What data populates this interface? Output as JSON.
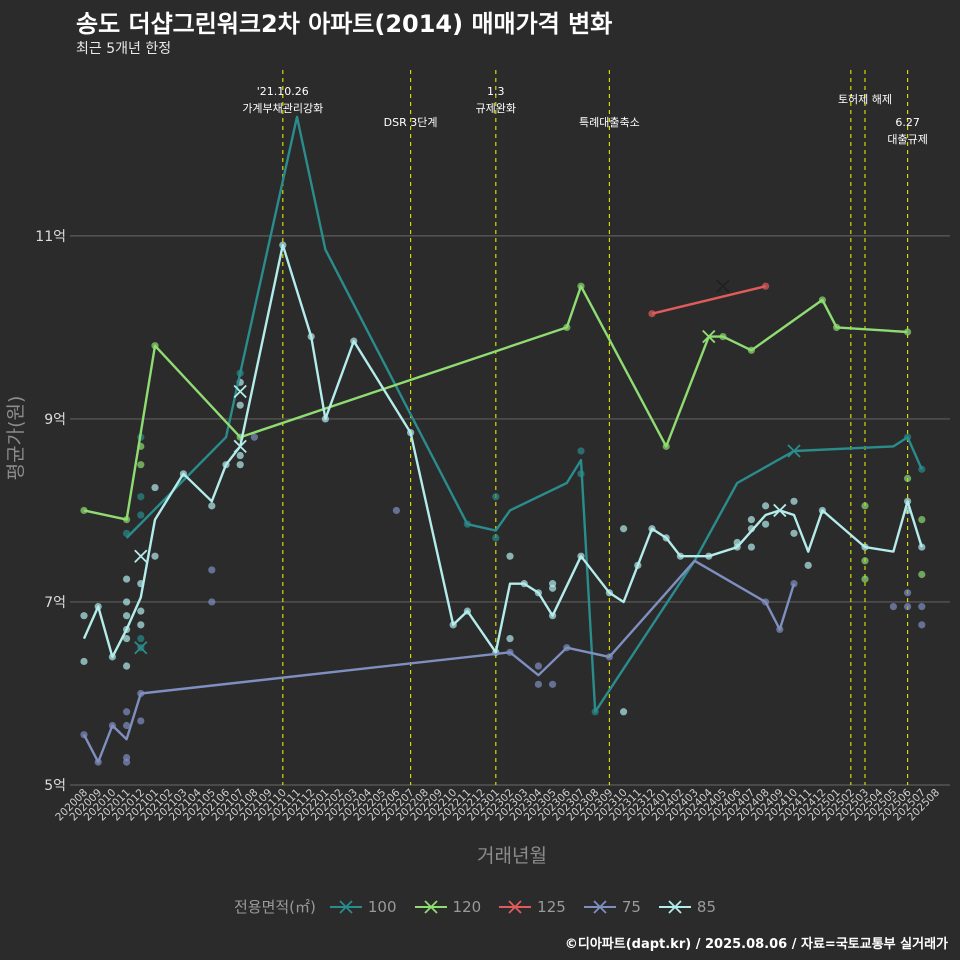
{
  "header": {
    "title": "송도 더샵그린워크2차 아파트(2014) 매매가격 변화",
    "subtitle": "최근 5개년 한정"
  },
  "footer": "©디아파트(dapt.kr) / 2025.08.06 / 자료=국토교통부 실거래가",
  "legend_title": "전용면적(㎡)",
  "chart_data": {
    "type": "line",
    "xlabel": "거래년월",
    "ylabel": "평균가(원)",
    "ylim": [
      5,
      12.9
    ],
    "yticks": [
      {
        "value": 5,
        "label": "5억"
      },
      {
        "value": 7,
        "label": "7억"
      },
      {
        "value": 9,
        "label": "9억"
      },
      {
        "value": 11,
        "label": "11억"
      }
    ],
    "categories": [
      "202008",
      "202009",
      "202010",
      "202011",
      "202012",
      "202101",
      "202102",
      "202103",
      "202104",
      "202105",
      "202106",
      "202107",
      "202108",
      "202109",
      "202110",
      "202111",
      "202112",
      "202201",
      "202202",
      "202203",
      "202204",
      "202205",
      "202206",
      "202207",
      "202208",
      "202209",
      "202210",
      "202211",
      "202212",
      "202301",
      "202302",
      "202303",
      "202304",
      "202305",
      "202306",
      "202307",
      "202308",
      "202309",
      "202310",
      "202311",
      "202312",
      "202401",
      "202402",
      "202403",
      "202404",
      "202405",
      "202406",
      "202407",
      "202408",
      "202409",
      "202410",
      "202411",
      "202412",
      "202501",
      "202502",
      "202503",
      "202504",
      "202505",
      "202506",
      "202507",
      "202508"
    ],
    "grid": true,
    "legend_position": "bottom",
    "events": [
      {
        "x": "202110",
        "lines": [
          "'21.10.26",
          "가계부채관리강화"
        ],
        "level": 0
      },
      {
        "x": "202207",
        "lines": [
          "DSR 3단계"
        ],
        "level": 1
      },
      {
        "x": "202301",
        "lines": [
          "1.3",
          "규제완화"
        ],
        "level": 0
      },
      {
        "x": "202309",
        "lines": [
          "특례대출축소"
        ],
        "level": 1
      },
      {
        "x": "202502",
        "lines": [],
        "level": 0
      },
      {
        "x": "202503",
        "lines": [
          "토허제 해제"
        ],
        "level": 0
      },
      {
        "x": "202506",
        "lines": [
          "6.27",
          "대출규제"
        ],
        "level": 1
      }
    ],
    "series": [
      {
        "name": "100",
        "color": "#2a8c8c",
        "points": [
          [
            "202011",
            7.7
          ],
          [
            "202106",
            8.8
          ],
          [
            "202111",
            12.3
          ],
          [
            "202201",
            10.85
          ],
          [
            "202211",
            7.85
          ],
          [
            "202301",
            7.78
          ],
          [
            "202302",
            8.0
          ],
          [
            "202306",
            8.3
          ],
          [
            "202307",
            8.55
          ],
          [
            "202308",
            5.8
          ],
          [
            "202403",
            7.45
          ],
          [
            "202406",
            8.3
          ],
          [
            "202410",
            8.65
          ],
          [
            "202505",
            8.7
          ],
          [
            "202506",
            8.8
          ],
          [
            "202507",
            8.45
          ]
        ],
        "scatter": [
          [
            "202011",
            7.75
          ],
          [
            "202012",
            8.8
          ],
          [
            "202012",
            8.15
          ],
          [
            "202012",
            7.95
          ],
          [
            "202012",
            6.6
          ],
          [
            "202012",
            6.5
          ],
          [
            "202107",
            9.5
          ],
          [
            "202211",
            7.85
          ],
          [
            "202301",
            8.15
          ],
          [
            "202301",
            7.7
          ],
          [
            "202307",
            8.65
          ],
          [
            "202307",
            8.4
          ],
          [
            "202308",
            5.8
          ],
          [
            "202506",
            8.8
          ],
          [
            "202507",
            8.45
          ]
        ],
        "crosses": [
          [
            "202012",
            6.5
          ],
          [
            "202410",
            8.65
          ]
        ]
      },
      {
        "name": "120",
        "color": "#8fdc72",
        "points": [
          [
            "202008",
            8.0
          ],
          [
            "202011",
            7.9
          ],
          [
            "202101",
            9.8
          ],
          [
            "202107",
            8.8
          ],
          [
            "202306",
            10.0
          ],
          [
            "202307",
            10.45
          ],
          [
            "202401",
            8.7
          ],
          [
            "202404",
            9.9
          ],
          [
            "202405",
            9.9
          ],
          [
            "202407",
            9.75
          ],
          [
            "202412",
            10.3
          ],
          [
            "202501",
            10.0
          ],
          [
            "202506",
            9.95
          ]
        ],
        "scatter": [
          [
            "202008",
            8.0
          ],
          [
            "202011",
            7.9
          ],
          [
            "202012",
            8.7
          ],
          [
            "202012",
            8.5
          ],
          [
            "202101",
            9.8
          ],
          [
            "202107",
            8.8
          ],
          [
            "202306",
            10.0
          ],
          [
            "202307",
            10.45
          ],
          [
            "202401",
            8.7
          ],
          [
            "202405",
            9.9
          ],
          [
            "202407",
            9.75
          ],
          [
            "202412",
            10.3
          ],
          [
            "202501",
            10.0
          ],
          [
            "202503",
            8.05
          ],
          [
            "202503",
            7.45
          ],
          [
            "202503",
            7.25
          ],
          [
            "202506",
            9.95
          ],
          [
            "202506",
            8.35
          ],
          [
            "202507",
            7.9
          ],
          [
            "202507",
            7.3
          ]
        ],
        "crosses": [
          [
            "202404",
            9.9
          ]
        ]
      },
      {
        "name": "125",
        "color": "#e05c5c",
        "points": [
          [
            "202312",
            10.15
          ],
          [
            "202408",
            10.45
          ]
        ],
        "scatter": [
          [
            "202312",
            10.15
          ],
          [
            "202408",
            10.45
          ]
        ],
        "crosses": [
          [
            "202405",
            10.45
          ]
        ]
      },
      {
        "name": "75",
        "color": "#7f8fc0",
        "points": [
          [
            "202008",
            5.55
          ],
          [
            "202009",
            5.25
          ],
          [
            "202010",
            5.65
          ],
          [
            "202011",
            5.5
          ],
          [
            "202012",
            6.0
          ],
          [
            "202302",
            6.45
          ],
          [
            "202304",
            6.2
          ],
          [
            "202306",
            6.5
          ],
          [
            "202309",
            6.4
          ],
          [
            "202403",
            7.45
          ],
          [
            "202408",
            7.0
          ],
          [
            "202409",
            6.7
          ],
          [
            "202410",
            7.2
          ]
        ],
        "scatter": [
          [
            "202008",
            5.55
          ],
          [
            "202009",
            5.25
          ],
          [
            "202010",
            5.65
          ],
          [
            "202011",
            5.3
          ],
          [
            "202011",
            5.25
          ],
          [
            "202011",
            5.65
          ],
          [
            "202011",
            5.8
          ],
          [
            "202012",
            6.0
          ],
          [
            "202012",
            5.7
          ],
          [
            "202105",
            7.35
          ],
          [
            "202105",
            7.0
          ],
          [
            "202108",
            8.8
          ],
          [
            "202206",
            8.0
          ],
          [
            "202302",
            6.45
          ],
          [
            "202304",
            6.3
          ],
          [
            "202304",
            6.1
          ],
          [
            "202305",
            6.1
          ],
          [
            "202306",
            6.5
          ],
          [
            "202309",
            6.4
          ],
          [
            "202408",
            7.0
          ],
          [
            "202409",
            6.7
          ],
          [
            "202410",
            7.2
          ],
          [
            "202505",
            6.95
          ],
          [
            "202506",
            6.95
          ],
          [
            "202506",
            7.1
          ],
          [
            "202507",
            6.95
          ],
          [
            "202507",
            6.75
          ]
        ],
        "crosses": []
      },
      {
        "name": "85",
        "color": "#b4ecec",
        "points": [
          [
            "202008",
            6.6
          ],
          [
            "202009",
            6.95
          ],
          [
            "202010",
            6.4
          ],
          [
            "202011",
            6.7
          ],
          [
            "202012",
            7.05
          ],
          [
            "202101",
            7.9
          ],
          [
            "202103",
            8.4
          ],
          [
            "202105",
            8.1
          ],
          [
            "202106",
            8.5
          ],
          [
            "202107",
            8.7
          ],
          [
            "202110",
            10.9
          ],
          [
            "202112",
            9.9
          ],
          [
            "202201",
            9.0
          ],
          [
            "202203",
            9.85
          ],
          [
            "202207",
            8.85
          ],
          [
            "202210",
            6.75
          ],
          [
            "202211",
            6.9
          ],
          [
            "202301",
            6.45
          ],
          [
            "202302",
            7.2
          ],
          [
            "202303",
            7.2
          ],
          [
            "202304",
            7.1
          ],
          [
            "202305",
            6.85
          ],
          [
            "202307",
            7.5
          ],
          [
            "202309",
            7.1
          ],
          [
            "202310",
            7.0
          ],
          [
            "202312",
            7.8
          ],
          [
            "202401",
            7.7
          ],
          [
            "202402",
            7.5
          ],
          [
            "202404",
            7.5
          ],
          [
            "202406",
            7.6
          ],
          [
            "202408",
            7.95
          ],
          [
            "202409",
            8.0
          ],
          [
            "202410",
            7.95
          ],
          [
            "202411",
            7.55
          ],
          [
            "202412",
            8.0
          ],
          [
            "202503",
            7.6
          ],
          [
            "202505",
            7.55
          ],
          [
            "202506",
            8.1
          ],
          [
            "202507",
            7.6
          ]
        ],
        "scatter": [
          [
            "202008",
            6.85
          ],
          [
            "202008",
            6.35
          ],
          [
            "202009",
            6.95
          ],
          [
            "202010",
            6.4
          ],
          [
            "202011",
            6.85
          ],
          [
            "202011",
            6.7
          ],
          [
            "202011",
            6.6
          ],
          [
            "202011",
            6.3
          ],
          [
            "202011",
            7.25
          ],
          [
            "202011",
            7.0
          ],
          [
            "202012",
            7.2
          ],
          [
            "202012",
            6.9
          ],
          [
            "202012",
            6.75
          ],
          [
            "202101",
            8.25
          ],
          [
            "202101",
            7.5
          ],
          [
            "202103",
            8.4
          ],
          [
            "202105",
            8.05
          ],
          [
            "202106",
            8.5
          ],
          [
            "202107",
            9.4
          ],
          [
            "202107",
            9.15
          ],
          [
            "202107",
            8.6
          ],
          [
            "202107",
            8.5
          ],
          [
            "202110",
            10.9
          ],
          [
            "202112",
            9.9
          ],
          [
            "202201",
            9.0
          ],
          [
            "202203",
            9.85
          ],
          [
            "202207",
            8.85
          ],
          [
            "202210",
            6.75
          ],
          [
            "202211",
            6.9
          ],
          [
            "202301",
            6.45
          ],
          [
            "202302",
            7.5
          ],
          [
            "202302",
            6.6
          ],
          [
            "202303",
            7.2
          ],
          [
            "202304",
            7.1
          ],
          [
            "202305",
            7.2
          ],
          [
            "202305",
            7.15
          ],
          [
            "202305",
            6.85
          ],
          [
            "202307",
            7.5
          ],
          [
            "202309",
            7.1
          ],
          [
            "202310",
            7.8
          ],
          [
            "202310",
            5.8
          ],
          [
            "202311",
            7.4
          ],
          [
            "202312",
            7.8
          ],
          [
            "202401",
            7.7
          ],
          [
            "202402",
            7.5
          ],
          [
            "202404",
            7.5
          ],
          [
            "202406",
            7.65
          ],
          [
            "202406",
            7.6
          ],
          [
            "202407",
            7.9
          ],
          [
            "202407",
            7.8
          ],
          [
            "202407",
            7.6
          ],
          [
            "202408",
            8.05
          ],
          [
            "202408",
            7.85
          ],
          [
            "202410",
            8.1
          ],
          [
            "202410",
            7.75
          ],
          [
            "202411",
            7.4
          ],
          [
            "202412",
            8.0
          ],
          [
            "202503",
            7.6
          ],
          [
            "202506",
            8.1
          ],
          [
            "202506",
            8.0
          ],
          [
            "202507",
            7.6
          ]
        ],
        "crosses": [
          [
            "202012",
            7.5
          ],
          [
            "202107",
            9.3
          ],
          [
            "202107",
            8.7
          ],
          [
            "202409",
            8.0
          ]
        ]
      }
    ]
  }
}
